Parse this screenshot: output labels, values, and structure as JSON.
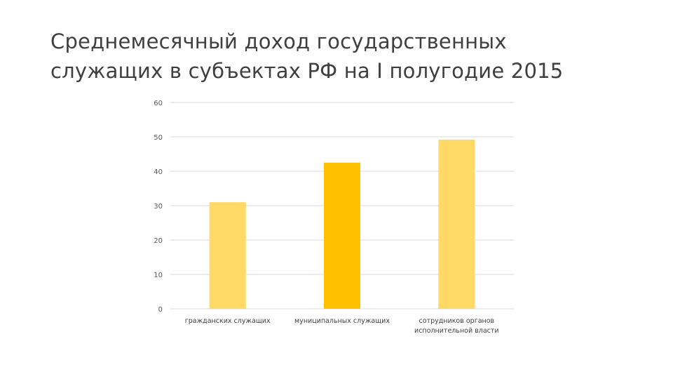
{
  "slide": {
    "title_line1": "Среднемесячный доход государственных",
    "title_line2": "служащих в субъектах РФ на I полугодие 2015"
  },
  "chart_data": {
    "type": "bar",
    "title": "",
    "xlabel": "",
    "ylabel": "",
    "ylim": [
      0,
      60
    ],
    "yticks": [
      0,
      10,
      20,
      30,
      40,
      50,
      60
    ],
    "grid": true,
    "legend": "none",
    "categories": [
      [
        "гражданских служащих"
      ],
      [
        "муниципальных служащих"
      ],
      [
        "сотрудников органов",
        "исполнительной власти"
      ]
    ],
    "values": [
      31,
      42.5,
      49.2
    ],
    "bar_colors": [
      "#FFD966",
      "#FFC000",
      "#FFD966"
    ],
    "gridline_color": "#d9d9d9"
  }
}
